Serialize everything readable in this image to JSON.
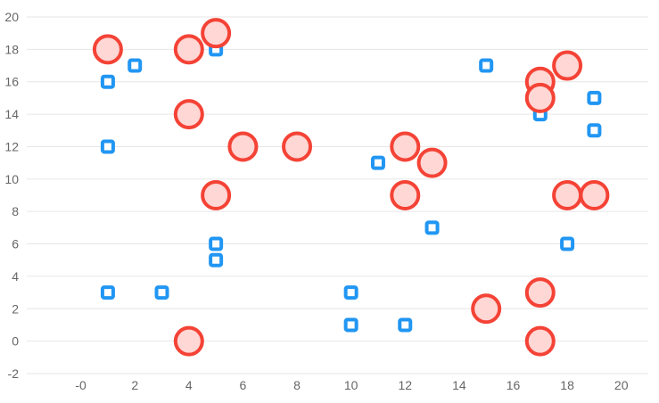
{
  "chart_data": {
    "type": "scatter",
    "xlim": [
      -2,
      21
    ],
    "ylim": [
      -2,
      20
    ],
    "xticks": [
      0,
      2,
      4,
      6,
      8,
      10,
      12,
      14,
      16,
      18,
      20
    ],
    "xtick_labels": [
      "-0",
      "2",
      "4",
      "6",
      "8",
      "10",
      "12",
      "14",
      "16",
      "18",
      "20"
    ],
    "yticks": [
      -2,
      0,
      2,
      4,
      6,
      8,
      10,
      12,
      14,
      16,
      18,
      20
    ],
    "ytick_labels": [
      "-2",
      "0",
      "2",
      "4",
      "6",
      "8",
      "10",
      "12",
      "14",
      "16",
      "18",
      "20"
    ],
    "grid": "horizontal",
    "legend": "none",
    "series": [
      {
        "marker": "square",
        "color": "#2196f3",
        "points": [
          [
            1,
            16
          ],
          [
            1,
            12
          ],
          [
            1,
            3
          ],
          [
            2,
            17
          ],
          [
            3,
            3
          ],
          [
            5,
            18
          ],
          [
            5,
            6
          ],
          [
            5,
            5
          ],
          [
            10,
            3
          ],
          [
            10,
            1
          ],
          [
            11,
            11
          ],
          [
            12,
            1
          ],
          [
            13,
            7
          ],
          [
            15,
            17
          ],
          [
            17,
            16
          ],
          [
            17,
            14
          ],
          [
            18,
            6
          ],
          [
            19,
            15
          ],
          [
            19,
            13
          ]
        ]
      },
      {
        "marker": "circle",
        "color": "#f44336",
        "fill": "#ffd7d5",
        "points": [
          [
            1,
            18
          ],
          [
            4,
            18
          ],
          [
            5,
            19
          ],
          [
            4,
            14
          ],
          [
            6,
            12
          ],
          [
            8,
            12
          ],
          [
            5,
            9
          ],
          [
            12,
            12
          ],
          [
            13,
            11
          ],
          [
            12,
            9
          ],
          [
            4,
            0
          ],
          [
            17,
            16
          ],
          [
            17,
            15
          ],
          [
            18,
            17
          ],
          [
            18,
            9
          ],
          [
            19,
            9
          ],
          [
            17,
            3
          ],
          [
            15,
            2
          ],
          [
            17,
            0
          ]
        ]
      }
    ]
  }
}
